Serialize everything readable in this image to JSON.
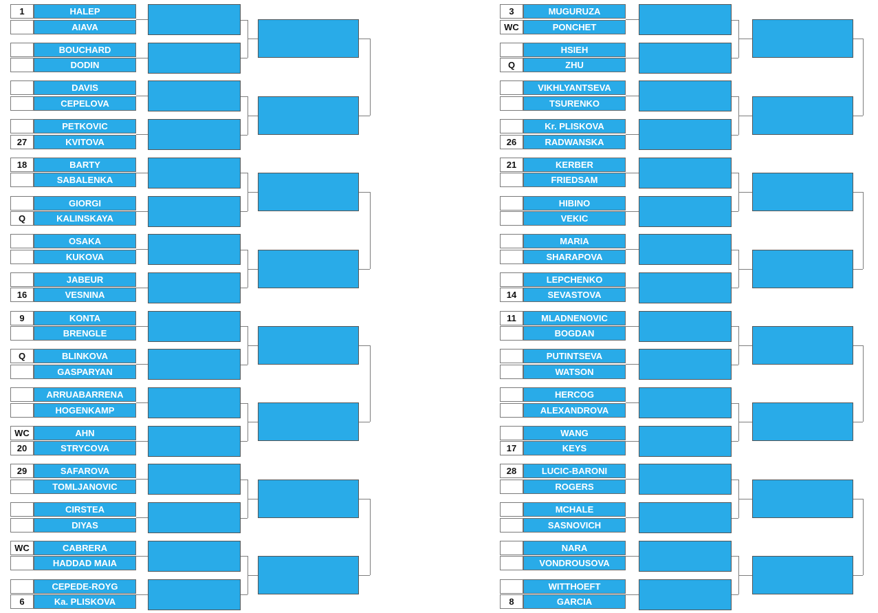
{
  "brackets": [
    {
      "side": "left",
      "matches": [
        {
          "top": {
            "seed": "1",
            "name": "HALEP"
          },
          "bottom": {
            "seed": "",
            "name": "AIAVA"
          }
        },
        {
          "top": {
            "seed": "",
            "name": "BOUCHARD"
          },
          "bottom": {
            "seed": "",
            "name": "DODIN"
          }
        },
        {
          "top": {
            "seed": "",
            "name": "DAVIS"
          },
          "bottom": {
            "seed": "",
            "name": "CEPELOVA"
          }
        },
        {
          "top": {
            "seed": "",
            "name": "PETKOVIC"
          },
          "bottom": {
            "seed": "27",
            "name": "KVITOVA"
          }
        },
        {
          "top": {
            "seed": "18",
            "name": "BARTY"
          },
          "bottom": {
            "seed": "",
            "name": "SABALENKA"
          }
        },
        {
          "top": {
            "seed": "",
            "name": "GIORGI"
          },
          "bottom": {
            "seed": "Q",
            "name": "KALINSKAYA"
          }
        },
        {
          "top": {
            "seed": "",
            "name": "OSAKA"
          },
          "bottom": {
            "seed": "",
            "name": "KUKOVA"
          }
        },
        {
          "top": {
            "seed": "",
            "name": "JABEUR"
          },
          "bottom": {
            "seed": "16",
            "name": "VESNINA"
          }
        },
        {
          "top": {
            "seed": "9",
            "name": "KONTA"
          },
          "bottom": {
            "seed": "",
            "name": "BRENGLE"
          }
        },
        {
          "top": {
            "seed": "Q",
            "name": "BLINKOVA"
          },
          "bottom": {
            "seed": "",
            "name": "GASPARYAN"
          }
        },
        {
          "top": {
            "seed": "",
            "name": "ARRUABARRENA"
          },
          "bottom": {
            "seed": "",
            "name": "HOGENKAMP"
          }
        },
        {
          "top": {
            "seed": "WC",
            "name": "AHN"
          },
          "bottom": {
            "seed": "20",
            "name": "STRYCOVA"
          }
        },
        {
          "top": {
            "seed": "29",
            "name": "SAFAROVA"
          },
          "bottom": {
            "seed": "",
            "name": "TOMLJANOVIC"
          }
        },
        {
          "top": {
            "seed": "",
            "name": "CIRSTEA"
          },
          "bottom": {
            "seed": "",
            "name": "DIYAS"
          }
        },
        {
          "top": {
            "seed": "WC",
            "name": "CABRERA"
          },
          "bottom": {
            "seed": "",
            "name": "HADDAD MAIA"
          }
        },
        {
          "top": {
            "seed": "",
            "name": "CEPEDE-ROYG"
          },
          "bottom": {
            "seed": "6",
            "name": "Ka. PLISKOVA"
          }
        }
      ]
    },
    {
      "side": "right",
      "matches": [
        {
          "top": {
            "seed": "3",
            "name": "MUGURUZA"
          },
          "bottom": {
            "seed": "WC",
            "name": "PONCHET"
          }
        },
        {
          "top": {
            "seed": "",
            "name": "HSIEH"
          },
          "bottom": {
            "seed": "Q",
            "name": "ZHU"
          }
        },
        {
          "top": {
            "seed": "",
            "name": "VIKHLYANTSEVA"
          },
          "bottom": {
            "seed": "",
            "name": "TSURENKO"
          }
        },
        {
          "top": {
            "seed": "",
            "name": "Kr. PLISKOVA"
          },
          "bottom": {
            "seed": "26",
            "name": "RADWANSKA"
          }
        },
        {
          "top": {
            "seed": "21",
            "name": "KERBER"
          },
          "bottom": {
            "seed": "",
            "name": "FRIEDSAM"
          }
        },
        {
          "top": {
            "seed": "",
            "name": "HIBINO"
          },
          "bottom": {
            "seed": "",
            "name": "VEKIC"
          }
        },
        {
          "top": {
            "seed": "",
            "name": "MARIA"
          },
          "bottom": {
            "seed": "",
            "name": "SHARAPOVA"
          }
        },
        {
          "top": {
            "seed": "",
            "name": "LEPCHENKO"
          },
          "bottom": {
            "seed": "14",
            "name": "SEVASTOVA"
          }
        },
        {
          "top": {
            "seed": "11",
            "name": "MLADNENOVIC"
          },
          "bottom": {
            "seed": "",
            "name": "BOGDAN"
          }
        },
        {
          "top": {
            "seed": "",
            "name": "PUTINTSEVA"
          },
          "bottom": {
            "seed": "",
            "name": "WATSON"
          }
        },
        {
          "top": {
            "seed": "",
            "name": "HERCOG"
          },
          "bottom": {
            "seed": "",
            "name": "ALEXANDROVA"
          }
        },
        {
          "top": {
            "seed": "",
            "name": "WANG"
          },
          "bottom": {
            "seed": "17",
            "name": "KEYS"
          }
        },
        {
          "top": {
            "seed": "28",
            "name": "LUCIC-BARONI"
          },
          "bottom": {
            "seed": "",
            "name": "ROGERS"
          }
        },
        {
          "top": {
            "seed": "",
            "name": "MCHALE"
          },
          "bottom": {
            "seed": "",
            "name": "SASNOVICH"
          }
        },
        {
          "top": {
            "seed": "",
            "name": "NARA"
          },
          "bottom": {
            "seed": "",
            "name": "VONDROUSOVA"
          }
        },
        {
          "top": {
            "seed": "",
            "name": "WITTHOEFT"
          },
          "bottom": {
            "seed": "8",
            "name": "GARCIA"
          }
        }
      ]
    }
  ],
  "colors": {
    "player_fill": "#29abe8",
    "player_text": "#ffffff",
    "seed_fill": "#ffffff",
    "connector": "#7d7d7d"
  }
}
